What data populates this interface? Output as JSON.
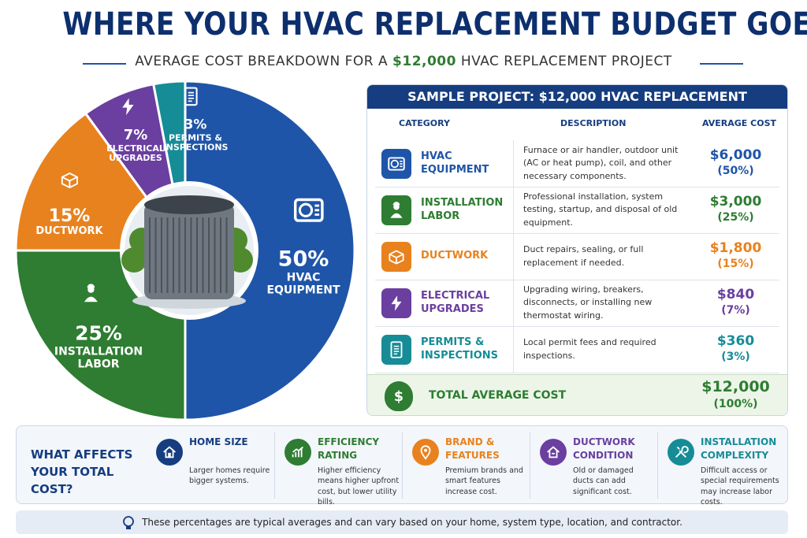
{
  "title": "WHERE YOUR HVAC REPLACEMENT BUDGET GOES",
  "subtitle": {
    "before": "AVERAGE COST BREAKDOWN FOR A",
    "amount": "$12,000",
    "after": "HVAC REPLACEMENT PROJECT"
  },
  "chart_data": {
    "type": "pie",
    "categories": [
      "HVAC EQUIPMENT",
      "INSTALLATION LABOR",
      "DUCTWORK",
      "ELECTRICAL UPGRADES",
      "PERMITS & INSPECTIONS"
    ],
    "values": [
      50,
      25,
      15,
      7,
      3
    ],
    "value_labels": [
      "50%",
      "25%",
      "15%",
      "7%",
      "3%"
    ],
    "colors": [
      "#1f55a8",
      "#2e7d32",
      "#e8821e",
      "#6a3fa0",
      "#168c97"
    ]
  },
  "table": {
    "title": "SAMPLE PROJECT: $12,000 HVAC REPLACEMENT",
    "header": [
      "CATEGORY",
      "DESCRIPTION",
      "AVERAGE COST"
    ],
    "rows": [
      {
        "category": "HVAC EQUIPMENT",
        "description": "Furnace or air handler, outdoor unit (AC or heat pump), coil, and other necessary components.",
        "cost": "$6,000",
        "share": "(50%)"
      },
      {
        "category": "INSTALLATION LABOR",
        "description": "Professional installation, system testing, startup, and disposal of old equipment.",
        "cost": "$3,000",
        "share": "(25%)"
      },
      {
        "category": "DUCTWORK",
        "description": "Duct repairs, sealing, or full replacement if needed.",
        "cost": "$1,800",
        "share": "(15%)"
      },
      {
        "category": "ELECTRICAL UPGRADES",
        "description": "Upgrading wiring, breakers, disconnects, or installing new thermostat wiring.",
        "cost": "$840",
        "share": "(7%)"
      },
      {
        "category": "PERMITS & INSPECTIONS",
        "description": "Local permit fees and required inspections.",
        "cost": "$360",
        "share": "(3%)"
      }
    ],
    "total": {
      "label": "TOTAL AVERAGE COST",
      "cost": "$12,000",
      "share": "(100%)"
    }
  },
  "factors": {
    "heading": "WHAT AFFECTS YOUR TOTAL COST?",
    "items": [
      {
        "title": "HOME SIZE",
        "text": "Larger homes require bigger systems."
      },
      {
        "title": "EFFICIENCY RATING",
        "text": "Higher efficiency means higher upfront cost, but lower utility bills."
      },
      {
        "title": "BRAND & FEATURES",
        "text": "Premium brands and smart features increase cost."
      },
      {
        "title": "DUCTWORK CONDITION",
        "text": "Old or damaged ducts can add significant cost."
      },
      {
        "title": "INSTALLATION COMPLEXITY",
        "text": "Difficult access or special requirements may increase labor costs."
      }
    ]
  },
  "footnote": "These percentages are typical averages and can vary based on your home, system type, location, and contractor."
}
